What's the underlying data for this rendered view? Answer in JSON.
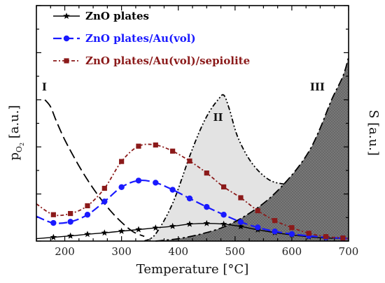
{
  "chart_data": {
    "type": "line",
    "title": "",
    "xlabel": "Temperature [°C]",
    "ylabel_left_main": "p",
    "ylabel_left_sub": "O",
    "ylabel_left_subsub": "2",
    "ylabel_left_unit": " [a.u.]",
    "ylabel_right": "S [a.u.]",
    "xlim": [
      150,
      700
    ],
    "ylim": [
      0,
      100
    ],
    "xticks": [
      "200",
      "300",
      "400",
      "500",
      "600",
      "700"
    ],
    "xtick_values": [
      200,
      300,
      400,
      500,
      600,
      700
    ],
    "legend_placement": "top-left",
    "series": [
      {
        "name": "ZnO plates",
        "color": "#000000",
        "marker": "star",
        "x": [
          150,
          180,
          210,
          240,
          270,
          300,
          330,
          360,
          390,
          420,
          450,
          480,
          510,
          540,
          570,
          600,
          630,
          660,
          690,
          700
        ],
        "y": [
          1.0,
          1.6,
          2.2,
          2.9,
          3.5,
          4.2,
          4.9,
          5.6,
          6.3,
          7.2,
          7.5,
          7.2,
          6.2,
          4.8,
          3.6,
          2.6,
          1.8,
          1.3,
          1.1,
          1.1
        ]
      },
      {
        "name": "ZnO plates/Au(vol)",
        "color": "#1a1aff",
        "marker": "circle",
        "x": [
          150,
          180,
          210,
          240,
          270,
          300,
          330,
          360,
          390,
          420,
          450,
          480,
          510,
          540,
          570,
          600,
          630,
          660,
          690,
          700
        ],
        "y": [
          10.5,
          7.7,
          8.2,
          11.2,
          16.8,
          22.9,
          25.7,
          24.8,
          21.8,
          18.1,
          14.5,
          11.2,
          8.1,
          5.8,
          4.1,
          3.0,
          2.2,
          1.6,
          1.2,
          1.0
        ]
      },
      {
        "name": "ZnO plates/Au(vol)/sepiolite",
        "color": "#8b1a1a",
        "marker": "square",
        "x": [
          150,
          180,
          210,
          240,
          270,
          300,
          330,
          360,
          390,
          420,
          450,
          480,
          510,
          540,
          570,
          600,
          630,
          660,
          690,
          700
        ],
        "y": [
          15.8,
          11.2,
          11.7,
          15.0,
          22.4,
          33.8,
          40.3,
          40.8,
          38.2,
          34.0,
          28.9,
          23.0,
          18.4,
          12.9,
          8.7,
          5.7,
          3.3,
          1.9,
          1.3,
          1.0
        ]
      },
      {
        "name": "",
        "color": "#000000",
        "style": "dashed",
        "x": [
          165,
          175,
          185,
          200,
          220,
          240,
          260,
          280,
          300,
          320,
          340
        ],
        "y": [
          60,
          57,
          51,
          43,
          34,
          26,
          19,
          13,
          8,
          4,
          2
        ]
      },
      {
        "name": "",
        "color": "#000000",
        "style": "dash-dot-dot",
        "x": [
          340,
          360,
          390,
          420,
          440,
          455,
          470,
          480,
          490,
          505,
          530,
          560,
          590
        ],
        "y": [
          0,
          3,
          16,
          36,
          48,
          55,
          60,
          62,
          56,
          44,
          33,
          26,
          24
        ]
      },
      {
        "name": "",
        "color": "#000000",
        "style": "dash-dot",
        "x": [
          360,
          400,
          440,
          480,
          520,
          560,
          600,
          630,
          650,
          670,
          690,
          700
        ],
        "y": [
          0,
          1,
          3,
          6,
          11,
          18,
          28,
          38,
          48,
          60,
          70,
          78
        ]
      }
    ],
    "annotations": [
      {
        "text": "I",
        "x": 164,
        "y": 64
      },
      {
        "text": "II",
        "x": 470,
        "y": 51
      },
      {
        "text": "III",
        "x": 645,
        "y": 64
      }
    ]
  }
}
